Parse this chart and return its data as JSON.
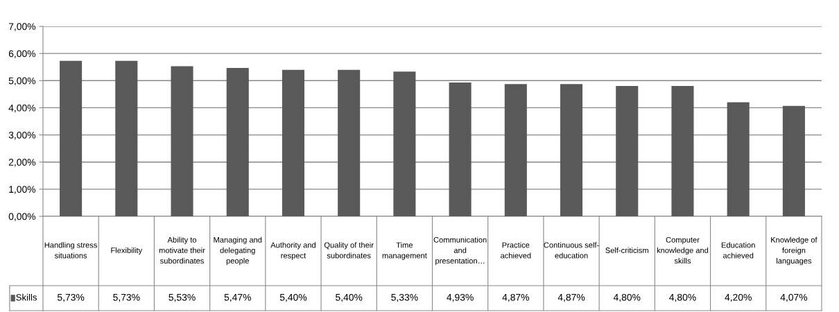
{
  "chart_data": {
    "type": "bar",
    "categories": [
      "Handling stress\nsituations",
      "Flexibility",
      "Ability to\nmotivate their\nsubordinates",
      "Managing and\ndelegating\npeople",
      "Authority and\nrespect",
      "Quality of their\nsubordinates",
      "Time\nmanagement",
      "Communication\nand\npresentation…",
      "Practice\nachieved",
      "Continuous self-\neducation",
      "Self-criticism",
      "Computer\nknowledge and\nskills",
      "Education\nachieved",
      "Knowledge of\nforeign\nlanguages"
    ],
    "series": [
      {
        "name": "Skills",
        "color": "#595959",
        "values": [
          5.73,
          5.73,
          5.53,
          5.47,
          5.4,
          5.4,
          5.33,
          4.93,
          4.87,
          4.87,
          4.8,
          4.8,
          4.2,
          4.07
        ],
        "value_labels": [
          "5,73%",
          "5,73%",
          "5,53%",
          "5,47%",
          "5,40%",
          "5,40%",
          "5,33%",
          "4,93%",
          "4,87%",
          "4,87%",
          "4,80%",
          "4,80%",
          "4,20%",
          "4,07%"
        ]
      }
    ],
    "ylim": [
      0,
      7
    ],
    "yticks": [
      {
        "value": 0,
        "label": "0,00%"
      },
      {
        "value": 1,
        "label": "1,00%"
      },
      {
        "value": 2,
        "label": "2,00%"
      },
      {
        "value": 3,
        "label": "3,00%"
      },
      {
        "value": 4,
        "label": "4,00%"
      },
      {
        "value": 5,
        "label": "5,00%"
      },
      {
        "value": 6,
        "label": "6,00%"
      },
      {
        "value": 7,
        "label": "7,00%"
      }
    ],
    "grid": "y",
    "legend": "bottom"
  }
}
